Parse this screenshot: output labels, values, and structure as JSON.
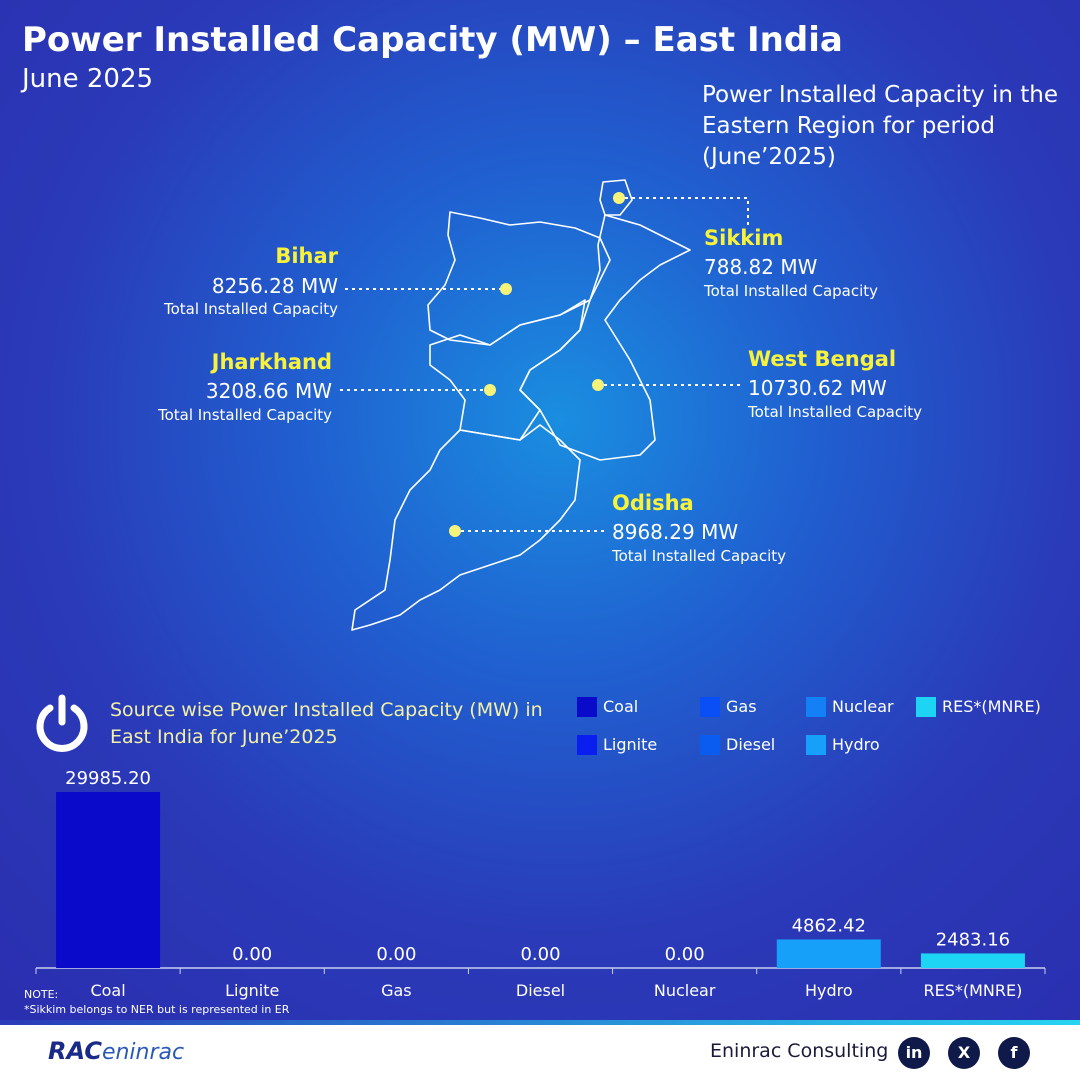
{
  "title": "Power Installed Capacity (MW) – East India",
  "subtitle": "June 2025",
  "map_heading": "Power Installed Capacity in the Eastern Region for period (June’2025)",
  "states": [
    {
      "name": "Bihar",
      "value": "8256.28 MW",
      "caption": "Total Installed Capacity"
    },
    {
      "name": "Jharkhand",
      "value": "3208.66 MW",
      "caption": "Total Installed Capacity"
    },
    {
      "name": "Sikkim",
      "value": "788.82 MW",
      "caption": "Total Installed Capacity"
    },
    {
      "name": "West Bengal",
      "value": "10730.62 MW",
      "caption": "Total Installed Capacity"
    },
    {
      "name": "Odisha",
      "value": "8968.29 MW",
      "caption": "Total Installed Capacity"
    }
  ],
  "chart_data": {
    "type": "bar",
    "title": "Source wise Power Installed Capacity (MW) in East India for June’2025",
    "categories": [
      "Coal",
      "Lignite",
      "Gas",
      "Diesel",
      "Nuclear",
      "Hydro",
      "RES*(MNRE)"
    ],
    "values": [
      29985.2,
      0,
      0,
      0,
      0,
      4862.42,
      2483.16
    ],
    "value_labels": [
      "29985.20",
      "0.00",
      "0.00",
      "0.00",
      "0.00",
      "4862.42",
      "2483.16"
    ],
    "colors": [
      "#0a0acb",
      "#0a1ef0",
      "#0a4ff5",
      "#0a5cf0",
      "#1480f5",
      "#17a0fa",
      "#1ed4f5"
    ]
  },
  "note": {
    "label": "NOTE:",
    "text": "*Sikkim belongs to NER but is represented in ER"
  },
  "footer": {
    "logo": [
      "RAC",
      "eninrac"
    ],
    "company": "Eninrac Consulting",
    "social": [
      "in",
      "X",
      "f"
    ]
  }
}
